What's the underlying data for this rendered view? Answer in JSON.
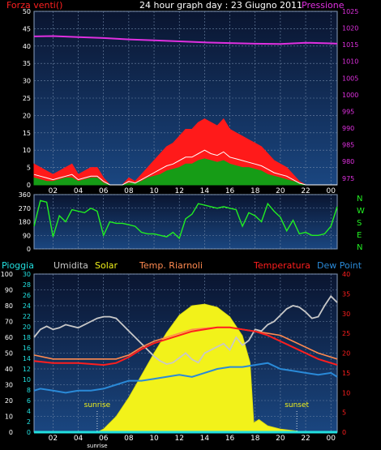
{
  "title": "24 hour graph day : 23 Giugno 2011",
  "colors": {
    "background": "#000000",
    "plot_bg_top": "#0a1530",
    "plot_bg_bottom": "#1a4680",
    "grid": "#6f86a6",
    "axis_text": "#ffffff",
    "wind_gust": "#ff1a1a",
    "wind_avg": "#ffffff",
    "wind_speed": "#169c16",
    "pressure": "#e030e0",
    "direction": "#22ee22",
    "rain_axis": "#22e0e0",
    "humidity": "#c8c8c8",
    "solar": "#f2f21a",
    "indoor_temp": "#ff8a50",
    "temperature": "#ff1e1e",
    "dew_point": "#2a8ad8"
  },
  "x_ticks": [
    "02",
    "04",
    "06",
    "08",
    "10",
    "12",
    "14",
    "16",
    "18",
    "20",
    "22",
    "00"
  ],
  "chart_data": [
    {
      "type": "area",
      "title": "24 hour graph day : 23 Giugno 2011",
      "left_axis_label": "Forza venti()",
      "right_axis_label": "Pressione",
      "left_ylim": [
        0,
        50
      ],
      "left_ticks": [
        0,
        5,
        10,
        15,
        20,
        25,
        30,
        35,
        40,
        45,
        50
      ],
      "right_ylim": [
        973,
        1025
      ],
      "right_ticks": [
        975,
        980,
        985,
        990,
        995,
        1000,
        1005,
        1010,
        1015,
        1020,
        1025
      ],
      "x_hours_range": [
        0.5,
        24.5
      ],
      "series": [
        {
          "name": "gust",
          "x": [
            0.5,
            1,
            1.5,
            2,
            2.5,
            3,
            3.5,
            4,
            4.5,
            5,
            5.5,
            6,
            6.5,
            7,
            7.5,
            8,
            8.5,
            9,
            9.5,
            10,
            10.5,
            11,
            11.5,
            12,
            12.5,
            13,
            13.5,
            14,
            14.5,
            15,
            15.5,
            16,
            16.5,
            17,
            17.5,
            18,
            18.5,
            19,
            19.5,
            20,
            20.5,
            21,
            21.5,
            22,
            22.5,
            23,
            23.5,
            24,
            24.5
          ],
          "values": [
            6,
            5,
            4,
            3,
            4,
            5,
            6,
            3,
            4,
            5,
            5,
            2,
            0,
            0,
            0,
            2,
            1,
            3,
            5,
            7,
            9,
            11,
            12,
            14,
            16,
            16,
            18,
            19,
            18,
            17,
            19,
            16,
            15,
            14,
            13,
            12,
            11,
            9,
            7,
            6,
            5,
            3,
            1,
            0,
            0,
            0,
            0,
            0,
            0
          ]
        },
        {
          "name": "average",
          "x": [
            0.5,
            1,
            1.5,
            2,
            2.5,
            3,
            3.5,
            4,
            4.5,
            5,
            5.5,
            6,
            6.5,
            7,
            7.5,
            8,
            8.5,
            9,
            9.5,
            10,
            10.5,
            11,
            11.5,
            12,
            12.5,
            13,
            13.5,
            14,
            14.5,
            15,
            15.5,
            16,
            16.5,
            17,
            17.5,
            18,
            18.5,
            19,
            19.5,
            20,
            20.5,
            21,
            21.5,
            22,
            22.5,
            23,
            23.5,
            24,
            24.5
          ],
          "values": [
            3,
            2.5,
            2,
            1.5,
            2,
            2.5,
            3,
            1.5,
            2,
            2.5,
            2.5,
            1,
            0,
            0,
            0,
            1,
            0.5,
            1.5,
            2.5,
            3.5,
            4.5,
            5.5,
            6,
            7,
            8,
            8,
            9,
            10,
            9,
            8.5,
            9.5,
            8,
            7.5,
            7,
            6.5,
            6,
            5.5,
            4.5,
            3.5,
            3,
            2.5,
            1.5,
            0.5,
            0,
            0,
            0,
            0,
            0,
            0
          ]
        },
        {
          "name": "speed",
          "x": [
            0.5,
            1,
            1.5,
            2,
            2.5,
            3,
            3.5,
            4,
            4.5,
            5,
            5.5,
            6,
            6.5,
            7,
            7.5,
            8,
            8.5,
            9,
            9.5,
            10,
            10.5,
            11,
            11.5,
            12,
            12.5,
            13,
            13.5,
            14,
            14.5,
            15,
            15.5,
            16,
            16.5,
            17,
            17.5,
            18,
            18.5,
            19,
            19.5,
            20,
            20.5,
            21,
            21.5,
            22,
            22.5,
            23,
            23.5,
            24,
            24.5
          ],
          "values": [
            2,
            1.5,
            1,
            1,
            1.5,
            2,
            2,
            1,
            1.5,
            2,
            2,
            0.5,
            0,
            0,
            0,
            0.5,
            0.5,
            1,
            2,
            2.5,
            3,
            4,
            4.5,
            5,
            6,
            6,
            7,
            7.5,
            7,
            6.5,
            7,
            6,
            5.5,
            5,
            5,
            4.5,
            4,
            3,
            2.5,
            2,
            1.5,
            1,
            0.5,
            0,
            0,
            0,
            0,
            0,
            0
          ]
        },
        {
          "name": "pressure",
          "axis": "right",
          "x": [
            0.5,
            2,
            4,
            6,
            8,
            10,
            12,
            14,
            16,
            18,
            20,
            22,
            24,
            24.5
          ],
          "values": [
            1017.5,
            1017.6,
            1017.3,
            1017,
            1016.6,
            1016.3,
            1016,
            1015.7,
            1015.5,
            1015.3,
            1015.2,
            1015.6,
            1015.4,
            1015.3
          ]
        }
      ]
    },
    {
      "type": "line",
      "right_labels": [
        "N",
        "W",
        "S",
        "E",
        "N"
      ],
      "left_ylim": [
        0,
        360
      ],
      "left_ticks": [
        0,
        90,
        180,
        270,
        360
      ],
      "x_hours_range": [
        0.5,
        24.5
      ],
      "series": [
        {
          "name": "wind direction",
          "x": [
            0.5,
            1,
            1.5,
            2,
            2.5,
            3,
            3.5,
            4,
            4.5,
            5,
            5.5,
            6,
            6.5,
            7,
            7.5,
            8,
            8.5,
            9,
            9.5,
            10,
            10.5,
            11,
            11.5,
            12,
            12.5,
            13,
            13.5,
            14,
            14.5,
            15,
            15.5,
            16,
            16.5,
            17,
            17.5,
            18,
            18.5,
            19,
            19.5,
            20,
            20.5,
            21,
            21.5,
            22,
            22.5,
            23,
            23.5,
            24,
            24.5
          ],
          "values": [
            150,
            320,
            310,
            80,
            220,
            180,
            260,
            250,
            240,
            270,
            250,
            90,
            180,
            170,
            170,
            160,
            150,
            110,
            100,
            100,
            90,
            80,
            110,
            70,
            200,
            230,
            300,
            290,
            280,
            270,
            280,
            270,
            260,
            150,
            240,
            220,
            180,
            300,
            250,
            210,
            120,
            190,
            100,
            110,
            90,
            90,
            100,
            150,
            280
          ]
        }
      ]
    },
    {
      "type": "line",
      "legend": [
        "Pioggia",
        "Umidita",
        "Solar",
        "Temp. Riarnoli",
        "Temperatura",
        "Dew Point"
      ],
      "annotations": [
        "sunrise",
        "sunset"
      ],
      "x_tick_extra": "sunrise",
      "left_ylim": [
        0,
        100
      ],
      "left_ticks": [
        0,
        10,
        20,
        30,
        40,
        50,
        60,
        70,
        80,
        90,
        100
      ],
      "rain_ticks": [
        0,
        2,
        4,
        6,
        8,
        10,
        12,
        14,
        16,
        18,
        20,
        22,
        24,
        26,
        28,
        30
      ],
      "rain_ylim": [
        0,
        30
      ],
      "right_ylim": [
        0,
        40
      ],
      "right_ticks": [
        0,
        5,
        10,
        15,
        20,
        25,
        30,
        35,
        40
      ],
      "x_hours_range": [
        0.5,
        24.5
      ],
      "sunrise_hour": 5.5,
      "sunset_hour": 21.3,
      "series": [
        {
          "name": "Pioggia",
          "axis": "rain",
          "x": [
            0.5,
            24.5
          ],
          "values": [
            0,
            0
          ]
        },
        {
          "name": "Umidita",
          "axis": "left",
          "x": [
            0.5,
            1,
            1.5,
            2,
            2.5,
            3,
            3.5,
            4,
            4.5,
            5,
            5.5,
            6,
            6.5,
            7,
            7.5,
            8,
            8.5,
            9,
            9.5,
            10,
            10.5,
            11,
            11.5,
            12,
            12.5,
            13,
            13.5,
            14,
            14.5,
            15,
            15.5,
            16,
            16.5,
            17,
            17.5,
            18,
            18.5,
            19,
            19.5,
            20,
            20.5,
            21,
            21.5,
            22,
            22.5,
            23,
            23.5,
            24,
            24.5
          ],
          "values": [
            60,
            65,
            67,
            65,
            66,
            68,
            67,
            66,
            68,
            70,
            72,
            73,
            73,
            72,
            68,
            64,
            60,
            56,
            52,
            48,
            45,
            43,
            44,
            47,
            50,
            46,
            44,
            50,
            52,
            54,
            56,
            52,
            60,
            55,
            58,
            65,
            64,
            68,
            70,
            74,
            78,
            80,
            79,
            76,
            72,
            73,
            80,
            86,
            82
          ]
        },
        {
          "name": "Solar",
          "axis": "left",
          "x": [
            0.5,
            5.5,
            6,
            7,
            8,
            9,
            10,
            11,
            12,
            13,
            14,
            15,
            16,
            17,
            17.6,
            17.9,
            18.3,
            19,
            20,
            21,
            22,
            24.5
          ],
          "values": [
            0,
            0,
            2,
            10,
            22,
            36,
            50,
            63,
            74,
            80,
            81,
            79,
            73,
            61,
            44,
            6,
            8,
            4,
            2,
            1,
            0,
            0
          ]
        },
        {
          "name": "Temp. Riarnoli",
          "axis": "right",
          "x": [
            0.5,
            2,
            4,
            6,
            7,
            8,
            9,
            10,
            11,
            12,
            13,
            14,
            15,
            16,
            17,
            18,
            19,
            20,
            21,
            22,
            23,
            24,
            24.5
          ],
          "values": [
            19.5,
            18.5,
            18.5,
            18.5,
            18.5,
            19.5,
            21.5,
            23,
            24,
            25,
            26,
            26.3,
            26.5,
            26.5,
            26,
            25.5,
            25,
            24.5,
            23,
            21.5,
            20,
            19,
            18.5
          ]
        },
        {
          "name": "Temperatura",
          "axis": "right",
          "x": [
            0.5,
            2,
            4,
            6,
            7,
            8,
            9,
            10,
            11,
            12,
            13,
            14,
            15,
            16,
            17,
            18,
            19,
            20,
            21,
            22,
            23,
            24,
            24.5
          ],
          "values": [
            18,
            17.5,
            17.5,
            17,
            17.5,
            19,
            21,
            22.5,
            23.5,
            24.5,
            25.5,
            26,
            26.5,
            26.5,
            26,
            25.5,
            24.5,
            23,
            21.5,
            20,
            18.5,
            17.5,
            17
          ]
        },
        {
          "name": "Dew Point",
          "axis": "right",
          "x": [
            0.5,
            1,
            2,
            3,
            4,
            5,
            6,
            7,
            8,
            9,
            10,
            11,
            12,
            13,
            14,
            15,
            16,
            17,
            18,
            19,
            20,
            21,
            22,
            23,
            24,
            24.5
          ],
          "values": [
            10.5,
            11,
            10.5,
            10,
            10.5,
            10.5,
            11,
            12,
            13,
            13,
            13.5,
            14,
            14.5,
            14,
            15,
            16,
            16.5,
            16.5,
            17,
            17.5,
            16,
            15.5,
            15,
            14.5,
            15,
            14
          ]
        }
      ]
    }
  ]
}
